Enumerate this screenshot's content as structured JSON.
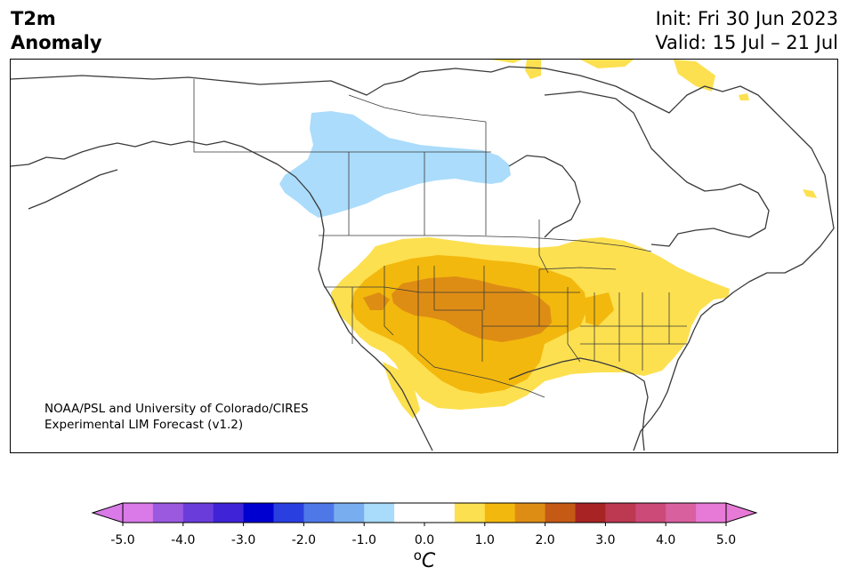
{
  "title": {
    "line1": "T2m",
    "line2": "Anomaly"
  },
  "init": {
    "line1": "Init: Fri 30 Jun 2023",
    "line2": "Valid: 15 Jul – 21 Jul"
  },
  "credit": {
    "line1": "NOAA/PSL and University of Colorado/CIRES",
    "line2": "Experimental LIM Forecast (v1.2)"
  },
  "colorbar": {
    "unit_base": "C",
    "unit_sup": "o",
    "tick_labels": [
      "-5.0",
      "-4.0",
      "-3.0",
      "-2.0",
      "-1.0",
      "0.0",
      "1.0",
      "2.0",
      "3.0",
      "4.0",
      "5.0"
    ],
    "bin_colors": [
      "#d97ae8",
      "#9b59e0",
      "#6a3ddb",
      "#3e24d6",
      "#0000d0",
      "#2a3fe0",
      "#4e78e8",
      "#78aef0",
      "#a9dbfa",
      "#ffffff",
      "#ffffff",
      "#fde050",
      "#f3b80d",
      "#de8d14",
      "#c45a14",
      "#a82424",
      "#bd3952",
      "#cc4a78",
      "#d9609f",
      "#e67ad6"
    ],
    "under_color": "#d97ae8",
    "over_color": "#e67ad6"
  },
  "anomaly_colors": {
    "light_blue": "#abdcfb",
    "light_yellow": "#fde050",
    "gold": "#f3b80d",
    "orange": "#de8d14"
  }
}
